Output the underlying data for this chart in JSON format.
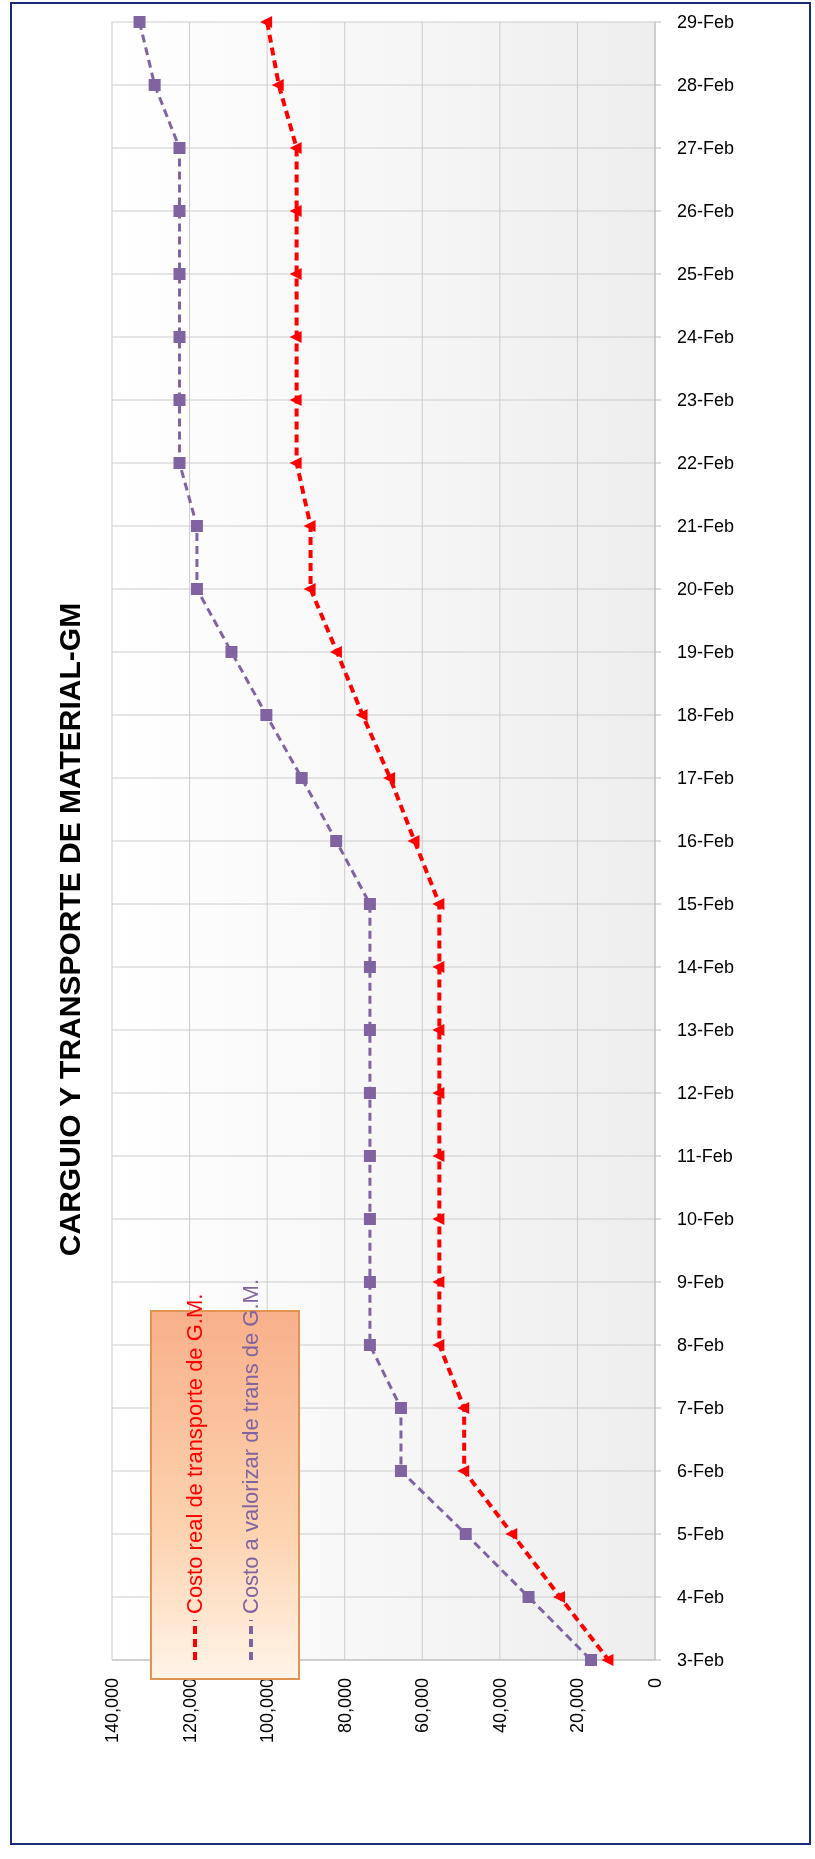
{
  "chart_data": {
    "type": "line",
    "title": "CARGUIO Y TRANSPORTE  DE MATERIAL-GM",
    "orientation": "horizontal",
    "categories": [
      "29-Feb",
      "28-Feb",
      "27-Feb",
      "26-Feb",
      "25-Feb",
      "24-Feb",
      "23-Feb",
      "22-Feb",
      "21-Feb",
      "20-Feb",
      "19-Feb",
      "18-Feb",
      "17-Feb",
      "16-Feb",
      "15-Feb",
      "14-Feb",
      "13-Feb",
      "12-Feb",
      "11-Feb",
      "10-Feb",
      "9-Feb",
      "8-Feb",
      "7-Feb",
      "6-Feb",
      "5-Feb",
      "4-Feb",
      "3-Feb"
    ],
    "series": [
      {
        "name": "Costo real de transporte de G.M.",
        "color": "#ff0000",
        "marker": "triangle",
        "values": [
          100000,
          97000,
          92400,
          92400,
          92400,
          92400,
          92400,
          92400,
          88800,
          88800,
          82000,
          75400,
          68300,
          62000,
          55600,
          55600,
          55600,
          55600,
          55600,
          55600,
          55600,
          55600,
          49200,
          49200,
          36800,
          24500,
          12000
        ]
      },
      {
        "name": "Costo a valorizar de trans de G.M.",
        "color": "#8064a2",
        "marker": "square",
        "values": [
          132900,
          129000,
          122600,
          122600,
          122600,
          122600,
          122600,
          122600,
          118100,
          118100,
          109200,
          100200,
          91100,
          82200,
          73500,
          73500,
          73500,
          73500,
          73500,
          73500,
          73500,
          73500,
          65500,
          65500,
          48800,
          32600,
          16500
        ]
      }
    ],
    "xlim": [
      140000,
      0
    ],
    "xticks": [
      0,
      {
        "value": 20000,
        "label": "20,000"
      },
      {
        "value": 40000,
        "label": "40,000"
      },
      {
        "value": 60000,
        "label": "60,000"
      },
      {
        "value": 80000,
        "label": "80,000"
      },
      {
        "value": 100000,
        "label": "100,000"
      },
      {
        "value": 120000,
        "label": "120,000"
      },
      {
        "value": 140000,
        "label": "140,000"
      }
    ],
    "grid": true,
    "legend": "bottom left",
    "line_style": "dashed"
  }
}
